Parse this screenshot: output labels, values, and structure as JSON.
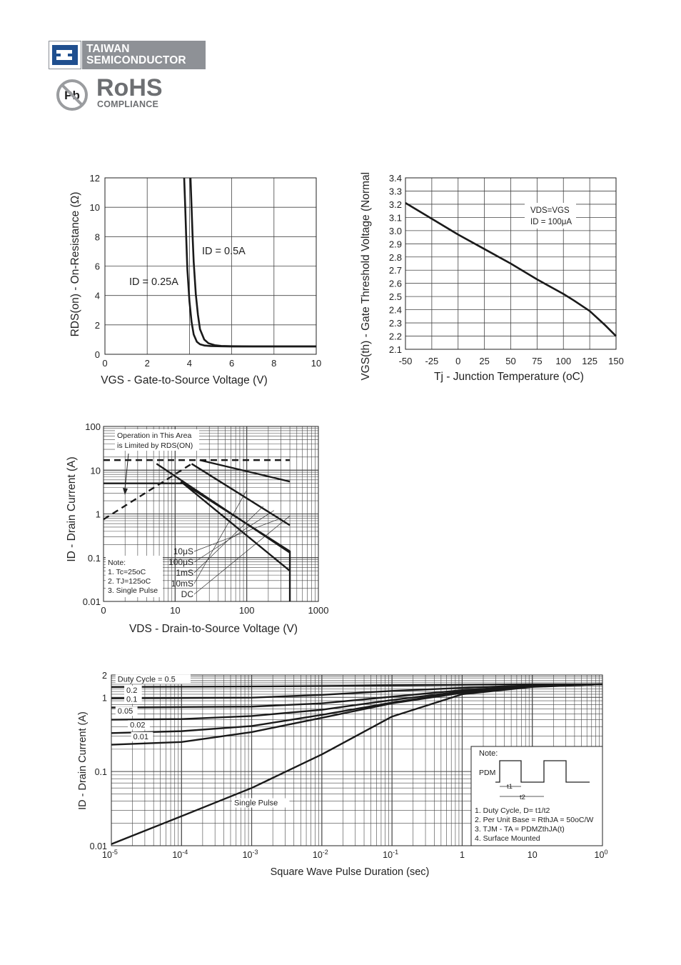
{
  "header": {
    "company_line1": "TAIWAN",
    "company_line2": "SEMICONDUCTOR",
    "rohs_title": "RoHS",
    "rohs_subtitle": "COMPLIANCE",
    "pb_label": "Pb",
    "brand_color": "#8e9196"
  },
  "chart_data": [
    {
      "type": "line",
      "xlabel": "VGS - Gate-to-Source Voltage (V)",
      "ylabel": "RDS(on) - On-Resistance (Ω)",
      "xlim": [
        0,
        10
      ],
      "ylim": [
        0,
        12
      ],
      "xticks": [
        "0",
        "2",
        "4",
        "6",
        "8",
        "10"
      ],
      "yticks": [
        "0",
        "2",
        "4",
        "6",
        "8",
        "10",
        "12"
      ],
      "grid": true,
      "series": [
        {
          "name": "ID = 0.25A",
          "x": [
            3.75,
            3.8,
            3.85,
            3.9,
            4.0,
            4.1,
            4.2,
            4.35,
            4.5,
            4.7,
            5.0,
            5.5,
            6.0,
            7.0,
            8.0,
            10.0
          ],
          "y": [
            12.0,
            10.0,
            7.8,
            5.8,
            3.6,
            2.2,
            1.35,
            0.85,
            0.68,
            0.6,
            0.56,
            0.54,
            0.53,
            0.53,
            0.53,
            0.53
          ]
        },
        {
          "name": "ID = 0.5A",
          "x": [
            4.05,
            4.1,
            4.15,
            4.2,
            4.3,
            4.4,
            4.5,
            4.7,
            4.9,
            5.2,
            5.5,
            6.0,
            7.0,
            8.0,
            10.0
          ],
          "y": [
            12.0,
            10.0,
            8.0,
            6.3,
            4.1,
            2.7,
            1.7,
            1.0,
            0.75,
            0.62,
            0.57,
            0.55,
            0.54,
            0.54,
            0.54
          ]
        }
      ]
    },
    {
      "type": "line",
      "xlabel": "Tj - Junction Temperature (oC)",
      "ylabel": "VGS(th) - Gate Threshold Voltage (Normalized)",
      "xlim": [
        -50,
        150
      ],
      "ylim": [
        2.1,
        3.4
      ],
      "xticks": [
        "-50",
        "-25",
        "0",
        "25",
        "50",
        "75",
        "100",
        "125",
        "150"
      ],
      "yticks": [
        "2.1",
        "2.2",
        "2.3",
        "2.4",
        "2.5",
        "2.6",
        "2.7",
        "2.8",
        "2.9",
        "3.0",
        "3.1",
        "3.2",
        "3.3",
        "3.4"
      ],
      "grid": true,
      "annotation": [
        "VDS=VGS",
        "ID = 100μA"
      ],
      "series": [
        {
          "name": "",
          "x": [
            -50,
            -25,
            0,
            25,
            50,
            75,
            100,
            110,
            125,
            140,
            150
          ],
          "y": [
            3.21,
            3.09,
            2.97,
            2.86,
            2.75,
            2.63,
            2.52,
            2.47,
            2.39,
            2.28,
            2.2
          ]
        }
      ]
    },
    {
      "type": "line",
      "xlabel": "VDS - Drain-to-Source Voltage (V)",
      "ylabel": "ID - Drain Current (A)",
      "xscale": "log",
      "yscale": "log",
      "xlim": [
        1,
        1000
      ],
      "ylim": [
        0.01,
        100
      ],
      "xticks": [
        "0",
        "10",
        "100",
        "1000"
      ],
      "yticks": [
        "0.01",
        "0.1",
        "1",
        "10",
        "100"
      ],
      "grid": true,
      "annotations": [
        "Operation in This Area",
        "is Limited by RDS(ON)"
      ],
      "notes": [
        "Note:",
        "1. Tc=25oC",
        "2. TJ=125oC",
        "3. Single Pulse"
      ],
      "series": [
        {
          "name": "RDS(ON) limit",
          "style": "dashed",
          "x": [
            1,
            17
          ],
          "y": [
            0.75,
            14
          ]
        },
        {
          "name": "current limit",
          "style": "dashed",
          "x": [
            1,
            400
          ],
          "y": [
            17,
            17
          ]
        },
        {
          "name": "10μS",
          "x": [
            22,
            400
          ],
          "y": [
            17,
            5.5
          ]
        },
        {
          "name": "100μS",
          "x": [
            17,
            400
          ],
          "y": [
            14,
            0.55
          ]
        },
        {
          "name": "1mS",
          "x": [
            12,
            400
          ],
          "y": [
            5.5,
            0.05
          ]
        },
        {
          "name": "10mS",
          "x": [
            5.5,
            400
          ],
          "y": [
            14,
            0.13
          ]
        },
        {
          "name": "DC",
          "x": [
            1,
            13,
            400,
            400
          ],
          "y": [
            5.0,
            5.0,
            0.14,
            0.01
          ]
        }
      ],
      "series_labels": [
        "10μS",
        "100μS",
        "1mS",
        "10mS",
        "DC"
      ]
    },
    {
      "type": "line",
      "xlabel": "Square Wave Pulse Duration (sec)",
      "ylabel": "ID - Drain Current (A)",
      "xscale": "log",
      "yscale": "log",
      "xlim": [
        1e-05,
        100
      ],
      "ylim": [
        0.01,
        2
      ],
      "xticks": [
        "10-5",
        "10-4",
        "10-3",
        "10-2",
        "10-1",
        "1",
        "10",
        "100"
      ],
      "yticks": [
        "0.01",
        "0.1",
        "1",
        "2"
      ],
      "grid": true,
      "notes": [
        "Note:",
        "PDM",
        "t1",
        "t2",
        "1. Duty Cycle, D= t1/t2",
        "2. Per Unit Base = RthJA = 50oC/W",
        "3. TJM - TA = PDMZthJA(t)",
        "4. Surface Mounted"
      ],
      "series": [
        {
          "name": "Duty Cycle = 0.5",
          "x": [
            1e-05,
            0.001,
            0.01,
            0.1,
            1,
            10,
            100
          ],
          "y": [
            1.38,
            1.4,
            1.42,
            1.45,
            1.48,
            1.5,
            1.5
          ]
        },
        {
          "name": "0.2",
          "x": [
            1e-05,
            0.001,
            0.01,
            0.1,
            1,
            10,
            100
          ],
          "y": [
            0.97,
            0.99,
            1.08,
            1.22,
            1.34,
            1.45,
            1.5
          ]
        },
        {
          "name": "0.1",
          "x": [
            1e-05,
            0.001,
            0.01,
            0.1,
            1,
            10,
            100
          ],
          "y": [
            0.73,
            0.75,
            0.83,
            1.02,
            1.25,
            1.42,
            1.5
          ]
        },
        {
          "name": "0.05",
          "x": [
            1e-05,
            0.0001,
            0.001,
            0.01,
            0.1,
            1,
            10,
            100
          ],
          "y": [
            0.5,
            0.51,
            0.56,
            0.68,
            0.92,
            1.2,
            1.4,
            1.5
          ]
        },
        {
          "name": "0.02",
          "x": [
            1e-05,
            0.0001,
            0.001,
            0.01,
            0.1,
            1,
            10,
            100
          ],
          "y": [
            0.33,
            0.35,
            0.41,
            0.58,
            0.85,
            1.17,
            1.4,
            1.5
          ]
        },
        {
          "name": "0.01",
          "x": [
            1e-05,
            0.0001,
            0.001,
            0.01,
            0.1,
            1,
            10,
            100
          ],
          "y": [
            0.23,
            0.25,
            0.34,
            0.53,
            0.83,
            1.15,
            1.39,
            1.5
          ]
        },
        {
          "name": "Single Pulse",
          "x": [
            1e-05,
            0.0001,
            0.001,
            0.01,
            0.1,
            1,
            10,
            100
          ],
          "y": [
            0.0105,
            0.025,
            0.06,
            0.17,
            0.55,
            1.1,
            1.38,
            1.5
          ]
        }
      ]
    }
  ]
}
